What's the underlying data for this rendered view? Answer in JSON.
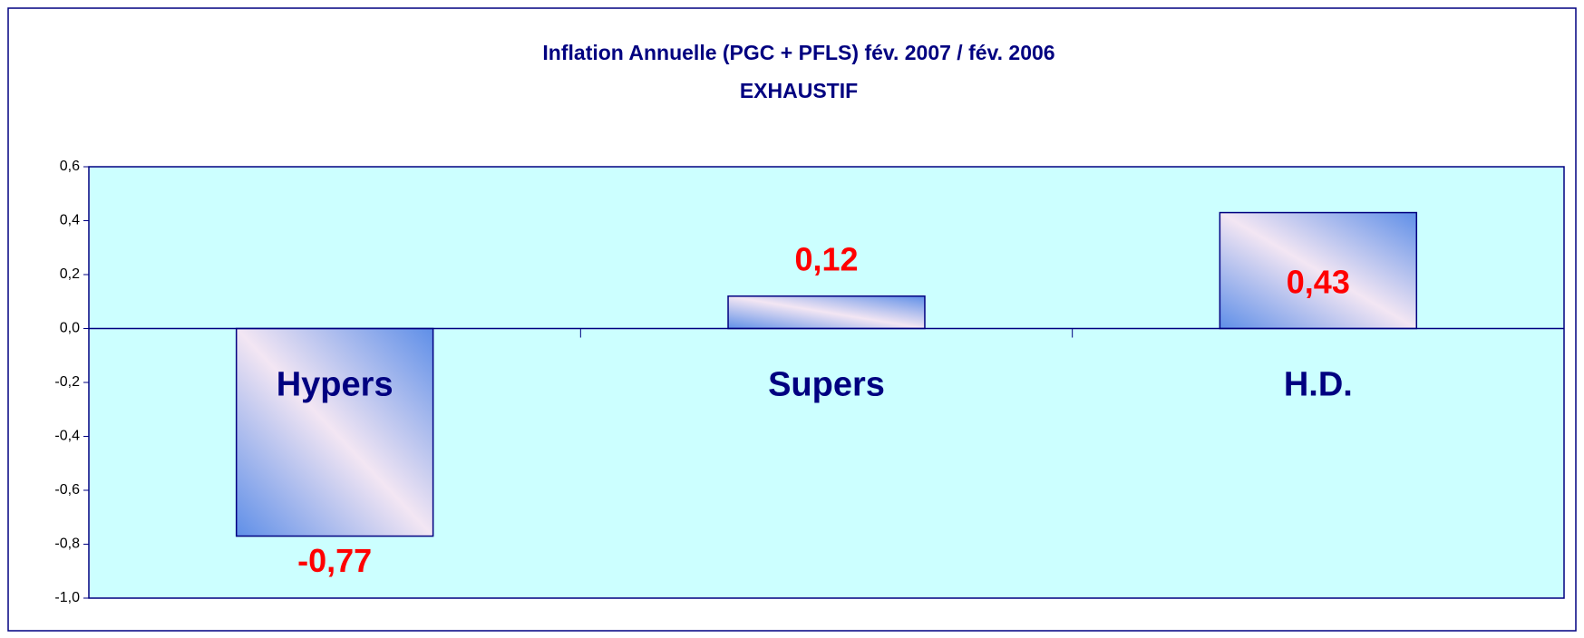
{
  "chart_data": {
    "type": "bar",
    "title": "Inflation Annuelle (PGC + PFLS) fév. 2007 / fév. 2006",
    "subtitle": "EXHAUSTIF",
    "categories": [
      "Hypers",
      "Supers",
      "H.D."
    ],
    "values": [
      -0.77,
      0.12,
      0.43
    ],
    "value_labels": [
      "-0,77",
      "0,12",
      "0,43"
    ],
    "ylim": [
      -1.0,
      0.6
    ],
    "yticks": [
      {
        "value": 0.6,
        "label": "0,6"
      },
      {
        "value": 0.4,
        "label": "0,4"
      },
      {
        "value": 0.2,
        "label": "0,2"
      },
      {
        "value": 0,
        "label": "0,0"
      },
      {
        "value": -0.2,
        "label": "-0,2"
      },
      {
        "value": -0.4,
        "label": "-0,4"
      },
      {
        "value": -0.6,
        "label": "-0,6"
      },
      {
        "value": -0.8,
        "label": "-0,8"
      },
      {
        "value": -1.0,
        "label": "-1,0"
      }
    ],
    "grid": false
  }
}
